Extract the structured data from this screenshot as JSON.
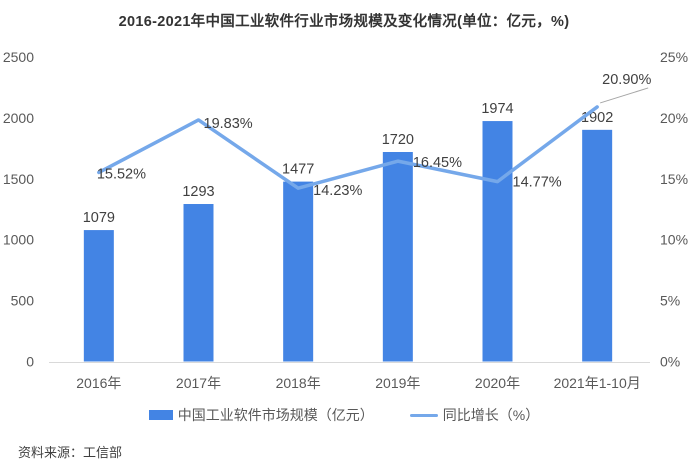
{
  "title": "2016-2021年中国工业软件行业市场规模及变化情况(单位：亿元，%)",
  "source": "资料来源：工信部",
  "legend": {
    "bar_label": "中国工业软件市场规模（亿元）",
    "line_label": "同比增长（%）"
  },
  "colors": {
    "bar": "#4384E4",
    "line": "#75A8EA",
    "axis_line": "#D9D9D9",
    "tick_text": "#595959",
    "label_text": "#404040",
    "title_text": "#333333",
    "source_text": "#404040",
    "leader_line": "#A6A6A6"
  },
  "chart_data": {
    "type": "bar+line",
    "categories": [
      "2016年",
      "2017年",
      "2018年",
      "2019年",
      "2020年",
      "2021年1-10月"
    ],
    "series": [
      {
        "name": "中国工业软件市场规模（亿元）",
        "type": "bar",
        "axis": "left",
        "values": [
          1079,
          1293,
          1477,
          1720,
          1974,
          1902
        ],
        "labels": [
          "1079",
          "1293",
          "1477",
          "1720",
          "1974",
          "1902"
        ]
      },
      {
        "name": "同比增长（%）",
        "type": "line",
        "axis": "right",
        "values": [
          15.52,
          19.83,
          14.23,
          16.45,
          14.77,
          20.9
        ],
        "labels": [
          "15.52%",
          "19.83%",
          "14.23%",
          "16.45%",
          "14.77%",
          "20.90%"
        ]
      }
    ],
    "left_axis": {
      "min": 0,
      "max": 2500,
      "step": 500,
      "ticks": [
        "0",
        "500",
        "1000",
        "1500",
        "2000",
        "2500"
      ]
    },
    "right_axis": {
      "min": 0,
      "max": 25,
      "step": 5,
      "ticks": [
        "0%",
        "5%",
        "10%",
        "15%",
        "20%",
        "25%"
      ]
    },
    "grid": false,
    "legend_position": "bottom"
  }
}
